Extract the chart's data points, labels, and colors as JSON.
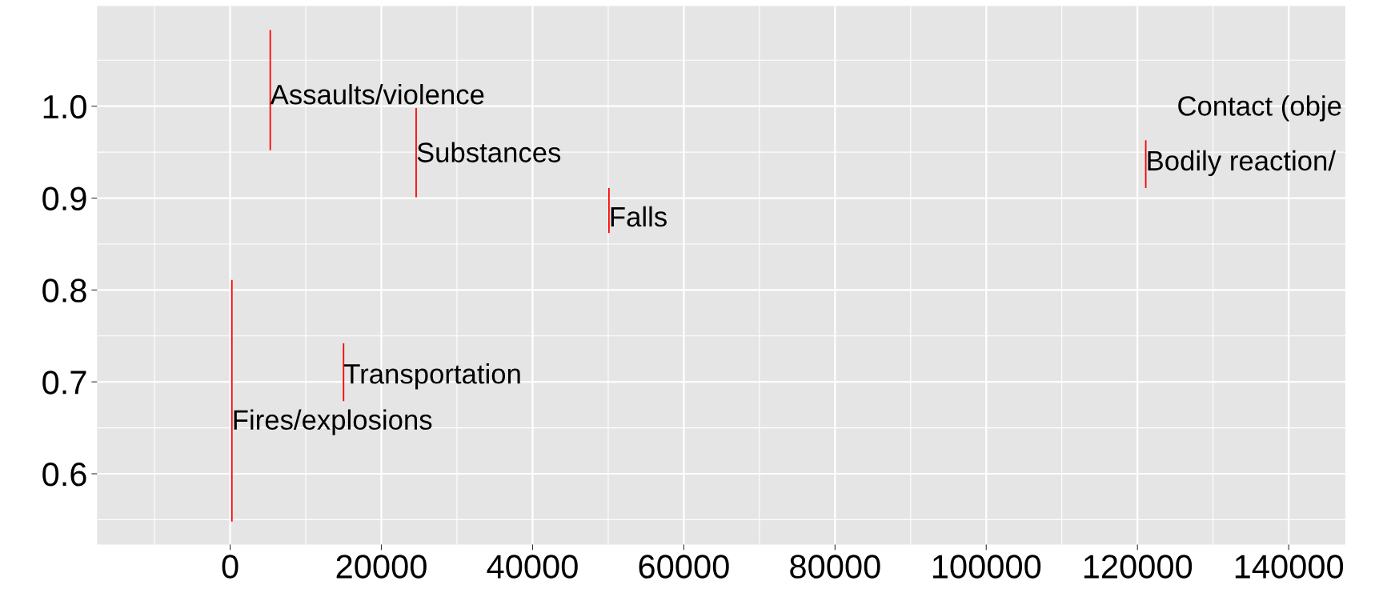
{
  "chart_data": {
    "type": "bar",
    "x": [
      230,
      5300,
      15000,
      24600,
      50100,
      121100
    ],
    "base": [
      0.548,
      0.952,
      0.679,
      0.901,
      0.862,
      0.911
    ],
    "values": [
      0.263,
      0.131,
      0.063,
      0.097,
      0.049,
      0.052
    ],
    "color": "#ff0000",
    "annotations": [
      {
        "text": "Fires/explosions",
        "x": 230,
        "y": 0.656
      },
      {
        "text": "Assaults/violence",
        "x": 5300,
        "y": 1.01
      },
      {
        "text": "Transportation",
        "x": 15000,
        "y": 0.706
      },
      {
        "text": "Substances",
        "x": 24600,
        "y": 0.947
      },
      {
        "text": "Falls",
        "x": 50100,
        "y": 0.877
      },
      {
        "text": "Bodily reaction/",
        "x": 121100,
        "y": 0.938
      },
      "Contact (obje"
    ],
    "xlim": [
      -17600,
      147500
    ],
    "ylim": [
      0.523,
      1.109
    ],
    "xticks": [
      0,
      20000,
      40000,
      60000,
      80000,
      100000,
      120000,
      140000
    ],
    "yticks": [
      0.6,
      0.7,
      0.8,
      0.9,
      {
        "value": 1.0,
        "label": "1.0"
      }
    ],
    "grid": true
  }
}
